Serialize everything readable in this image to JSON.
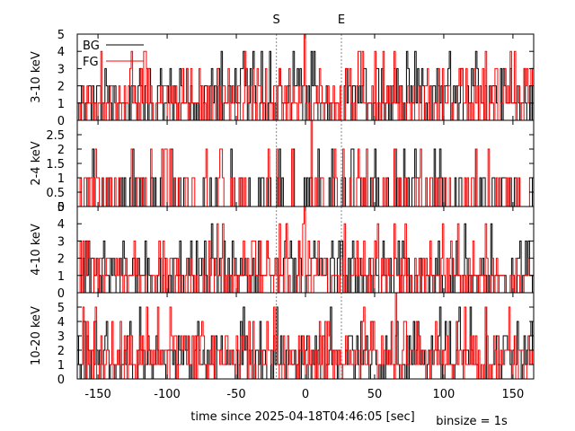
{
  "chart_data": {
    "type": "line",
    "line_style": "steps",
    "xlabel": "time since 2025-04-18T04:46:05 [sec]",
    "binsize_label": "binsize = 1s",
    "xlim": [
      -165,
      165
    ],
    "xticks": [
      -150,
      -100,
      -50,
      0,
      50,
      100,
      150
    ],
    "markers": [
      {
        "label": "S",
        "x": -21
      },
      {
        "label": "E",
        "x": 26
      }
    ],
    "legend": {
      "placement": "top-left",
      "entries": [
        {
          "label": "BG",
          "color": "#000000"
        },
        {
          "label": "FG",
          "color": "#ff0000"
        }
      ]
    },
    "panels": [
      {
        "ylabel": "3-10 keV",
        "ylim": [
          0,
          5
        ],
        "yticks": [
          0,
          1,
          2,
          3,
          4,
          5
        ],
        "yticklabels": [
          "0",
          "1",
          "2",
          "3",
          "4",
          "5"
        ],
        "seed_bg": 11,
        "seed_fg": 12,
        "mean": 1.3,
        "spikes_fg": [
          [
            -1,
            5
          ],
          [
            64,
            4
          ],
          [
            130,
            4
          ],
          [
            -119,
            3
          ]
        ]
      },
      {
        "ylabel": "2-4 keV",
        "ylim": [
          0,
          3
        ],
        "yticks": [
          0,
          0.5,
          1,
          1.5,
          2,
          2.5
        ],
        "yticklabels": [
          "0",
          "0.5",
          "1",
          "1.5",
          "2",
          "2.5"
        ],
        "seed_bg": 21,
        "seed_fg": 22,
        "mean": 0.4,
        "spikes_fg": [
          [
            4,
            3
          ],
          [
            -112,
            2
          ],
          [
            -21,
            2
          ],
          [
            132,
            2
          ]
        ]
      },
      {
        "ylabel": "4-10 keV",
        "ylim": [
          0,
          5
        ],
        "yticks": [
          0,
          1,
          2,
          3,
          4,
          5
        ],
        "yticklabels": [
          "0",
          "1",
          "2",
          "3",
          "4",
          "5"
        ],
        "seed_bg": 31,
        "seed_fg": 32,
        "mean": 1.2,
        "spikes_fg": [
          [
            -1,
            5
          ],
          [
            64,
            4
          ],
          [
            130,
            4
          ],
          [
            -103,
            3
          ]
        ]
      },
      {
        "ylabel": "10-20 keV",
        "ylim": [
          0,
          6
        ],
        "yticks": [
          0,
          1,
          2,
          3,
          4,
          5
        ],
        "yticklabels": [
          "0",
          "1",
          "2",
          "3",
          "4",
          "5"
        ],
        "seed_bg": 41,
        "seed_fg": 42,
        "mean": 1.6,
        "spikes_fg": [
          [
            65,
            6
          ],
          [
            -98,
            5
          ],
          [
            -38,
            4
          ],
          [
            130,
            5
          ]
        ]
      }
    ]
  }
}
